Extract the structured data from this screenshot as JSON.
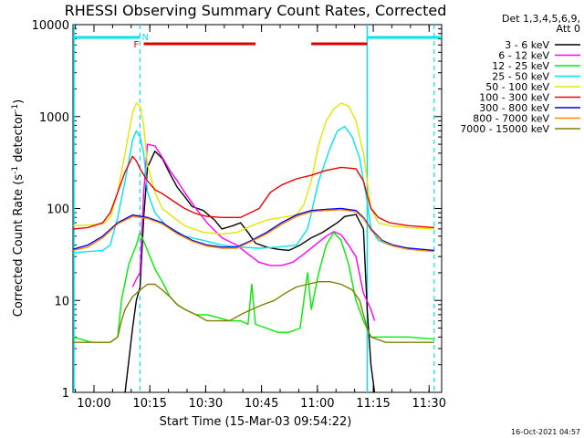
{
  "chart_data": {
    "type": "line",
    "title": "RHESSI Observing Summary Count Rates, Corrected",
    "ylabel_main": "Corrected Count Rate (s",
    "ylabel_sup1": "-1",
    "ylabel_mid": " detector",
    "ylabel_sup2": "-1",
    "ylabel_end": ")",
    "xlabel": "Start Time (15-Mar-03 09:54:22)",
    "timestamp": "16-Oct-2021 04:57",
    "y_scale": "log",
    "ylim": [
      1,
      10000
    ],
    "xlim_minutes_after_0954": [
      0,
      99
    ],
    "x_ticks": [
      {
        "label": "10:00",
        "t": 5.63
      },
      {
        "label": "10:15",
        "t": 20.63
      },
      {
        "label": "10:30",
        "t": 35.63
      },
      {
        "label": "10:45",
        "t": 50.63
      },
      {
        "label": "11:00",
        "t": 65.63
      },
      {
        "label": "11:15",
        "t": 80.63
      },
      {
        "label": "11:30",
        "t": 95.63
      }
    ],
    "y_ticks": [
      {
        "label": "1",
        "v": 1
      },
      {
        "label": "10",
        "v": 10
      },
      {
        "label": "100",
        "v": 100
      },
      {
        "label": "1000",
        "v": 1000
      },
      {
        "label": "10000",
        "v": 10000
      }
    ],
    "legend_header": [
      "Det 1,3,4,5,6,9,",
      "Att 0"
    ],
    "legend_placement": "right",
    "flags": [
      {
        "label": "F",
        "color": "#dd0000",
        "kind": "flare",
        "segments": [
          [
            19,
            49
          ],
          [
            64,
            79
          ]
        ]
      },
      {
        "label": "N",
        "color": "#00e5ee",
        "kind": "night",
        "segments": [
          [
            0,
            18
          ],
          [
            79,
            99
          ]
        ]
      }
    ],
    "night_dashed_lines_t": [
      18,
      97
    ],
    "night_solid_lines_t": [
      0,
      79
    ],
    "series": [
      {
        "name": "3 - 6 keV",
        "color": "#000000",
        "points": [
          [
            14,
            1.0
          ],
          [
            16,
            5
          ],
          [
            17,
            10
          ],
          [
            18,
            14
          ],
          [
            19,
            80
          ],
          [
            20,
            280
          ],
          [
            22,
            420
          ],
          [
            24,
            350
          ],
          [
            26,
            240
          ],
          [
            28,
            170
          ],
          [
            30,
            135
          ],
          [
            32,
            105
          ],
          [
            35,
            95
          ],
          [
            38,
            75
          ],
          [
            40,
            60
          ],
          [
            43,
            65
          ],
          [
            45,
            70
          ],
          [
            47,
            55
          ],
          [
            49,
            42
          ],
          [
            52,
            38
          ],
          [
            55,
            36
          ],
          [
            58,
            35
          ],
          [
            61,
            40
          ],
          [
            64,
            48
          ],
          [
            67,
            55
          ],
          [
            69,
            62
          ],
          [
            71,
            70
          ],
          [
            73,
            82
          ],
          [
            76,
            86
          ],
          [
            78,
            60
          ],
          [
            79,
            8
          ],
          [
            80,
            2
          ],
          [
            81,
            1.0
          ]
        ]
      },
      {
        "name": "6 - 12 keV",
        "color": "#ff00ff",
        "points": [
          [
            16,
            14
          ],
          [
            17,
            17
          ],
          [
            18,
            20
          ],
          [
            19,
            150
          ],
          [
            20,
            500
          ],
          [
            22,
            480
          ],
          [
            24,
            360
          ],
          [
            26,
            260
          ],
          [
            28,
            200
          ],
          [
            30,
            150
          ],
          [
            33,
            100
          ],
          [
            36,
            70
          ],
          [
            40,
            48
          ],
          [
            44,
            40
          ],
          [
            47,
            32
          ],
          [
            50,
            26
          ],
          [
            53,
            24
          ],
          [
            56,
            24
          ],
          [
            59,
            26
          ],
          [
            62,
            32
          ],
          [
            65,
            40
          ],
          [
            68,
            50
          ],
          [
            70,
            56
          ],
          [
            72,
            52
          ],
          [
            74,
            40
          ],
          [
            76,
            30
          ],
          [
            78,
            12
          ],
          [
            80,
            8
          ],
          [
            81,
            6
          ]
        ]
      },
      {
        "name": "12 - 25 keV",
        "color": "#00ee00",
        "points": [
          [
            0,
            4
          ],
          [
            5,
            3.5
          ],
          [
            10,
            3.5
          ],
          [
            12,
            4
          ],
          [
            13,
            10
          ],
          [
            15,
            25
          ],
          [
            17,
            40
          ],
          [
            18,
            55
          ],
          [
            20,
            35
          ],
          [
            22,
            22
          ],
          [
            24,
            16
          ],
          [
            26,
            11
          ],
          [
            28,
            9
          ],
          [
            30,
            8
          ],
          [
            33,
            7
          ],
          [
            36,
            7
          ],
          [
            39,
            6.5
          ],
          [
            42,
            6
          ],
          [
            45,
            6
          ],
          [
            47,
            5.5
          ],
          [
            48,
            15
          ],
          [
            49,
            5.5
          ],
          [
            52,
            5
          ],
          [
            55,
            4.5
          ],
          [
            58,
            4.5
          ],
          [
            61,
            5
          ],
          [
            63,
            20
          ],
          [
            64,
            8
          ],
          [
            66,
            20
          ],
          [
            68,
            40
          ],
          [
            70,
            55
          ],
          [
            72,
            45
          ],
          [
            74,
            25
          ],
          [
            76,
            10
          ],
          [
            78,
            6
          ],
          [
            80,
            4
          ],
          [
            85,
            4
          ],
          [
            90,
            4
          ],
          [
            97,
            3.8
          ]
        ]
      },
      {
        "name": "25 - 50 keV",
        "color": "#00e5ee",
        "points": [
          [
            0,
            33
          ],
          [
            4,
            34
          ],
          [
            8,
            35
          ],
          [
            10,
            40
          ],
          [
            12,
            80
          ],
          [
            14,
            200
          ],
          [
            16,
            550
          ],
          [
            17,
            700
          ],
          [
            18,
            600
          ],
          [
            19,
            400
          ],
          [
            20,
            150
          ],
          [
            22,
            90
          ],
          [
            25,
            65
          ],
          [
            30,
            50
          ],
          [
            35,
            45
          ],
          [
            40,
            40
          ],
          [
            45,
            38
          ],
          [
            50,
            37
          ],
          [
            55,
            38
          ],
          [
            60,
            40
          ],
          [
            63,
            60
          ],
          [
            66,
            200
          ],
          [
            69,
            450
          ],
          [
            71,
            700
          ],
          [
            73,
            780
          ],
          [
            75,
            600
          ],
          [
            77,
            350
          ],
          [
            78,
            200
          ],
          [
            79,
            120
          ],
          [
            80,
            60
          ],
          [
            82,
            45
          ],
          [
            85,
            40
          ],
          [
            90,
            37
          ],
          [
            97,
            35
          ]
        ]
      },
      {
        "name": "50 - 100 keV",
        "color": "#e5e500",
        "points": [
          [
            0,
            65
          ],
          [
            4,
            66
          ],
          [
            8,
            68
          ],
          [
            10,
            80
          ],
          [
            12,
            150
          ],
          [
            14,
            400
          ],
          [
            16,
            1100
          ],
          [
            17,
            1400
          ],
          [
            18,
            1300
          ],
          [
            19,
            800
          ],
          [
            20,
            300
          ],
          [
            22,
            150
          ],
          [
            24,
            100
          ],
          [
            27,
            80
          ],
          [
            30,
            65
          ],
          [
            35,
            55
          ],
          [
            40,
            53
          ],
          [
            44,
            55
          ],
          [
            48,
            65
          ],
          [
            52,
            75
          ],
          [
            56,
            80
          ],
          [
            60,
            85
          ],
          [
            62,
            110
          ],
          [
            64,
            200
          ],
          [
            66,
            500
          ],
          [
            68,
            900
          ],
          [
            70,
            1200
          ],
          [
            72,
            1400
          ],
          [
            74,
            1300
          ],
          [
            76,
            900
          ],
          [
            78,
            400
          ],
          [
            79,
            200
          ],
          [
            80,
            100
          ],
          [
            82,
            70
          ],
          [
            85,
            65
          ],
          [
            90,
            62
          ],
          [
            97,
            60
          ]
        ]
      },
      {
        "name": "100 - 300 keV",
        "color": "#ee0000",
        "points": [
          [
            0,
            60
          ],
          [
            4,
            62
          ],
          [
            8,
            70
          ],
          [
            10,
            90
          ],
          [
            12,
            150
          ],
          [
            14,
            250
          ],
          [
            16,
            370
          ],
          [
            17,
            330
          ],
          [
            18,
            270
          ],
          [
            20,
            200
          ],
          [
            22,
            160
          ],
          [
            24,
            145
          ],
          [
            27,
            120
          ],
          [
            30,
            100
          ],
          [
            33,
            88
          ],
          [
            36,
            82
          ],
          [
            40,
            80
          ],
          [
            45,
            80
          ],
          [
            50,
            100
          ],
          [
            53,
            150
          ],
          [
            56,
            180
          ],
          [
            60,
            210
          ],
          [
            64,
            230
          ],
          [
            68,
            260
          ],
          [
            72,
            280
          ],
          [
            76,
            270
          ],
          [
            78,
            200
          ],
          [
            79,
            140
          ],
          [
            80,
            100
          ],
          [
            82,
            80
          ],
          [
            85,
            70
          ],
          [
            90,
            65
          ],
          [
            97,
            62
          ]
        ]
      },
      {
        "name": "300 - 800 keV",
        "color": "#0000ee",
        "points": [
          [
            0,
            36
          ],
          [
            4,
            40
          ],
          [
            8,
            50
          ],
          [
            12,
            70
          ],
          [
            16,
            85
          ],
          [
            20,
            80
          ],
          [
            24,
            70
          ],
          [
            28,
            55
          ],
          [
            32,
            45
          ],
          [
            36,
            40
          ],
          [
            40,
            38
          ],
          [
            44,
            38
          ],
          [
            48,
            45
          ],
          [
            52,
            55
          ],
          [
            56,
            70
          ],
          [
            60,
            85
          ],
          [
            64,
            95
          ],
          [
            68,
            98
          ],
          [
            72,
            100
          ],
          [
            76,
            95
          ],
          [
            78,
            80
          ],
          [
            80,
            60
          ],
          [
            83,
            45
          ],
          [
            86,
            40
          ],
          [
            90,
            37
          ],
          [
            97,
            35
          ]
        ]
      },
      {
        "name": "800 - 7000 keV",
        "color": "#ff8800",
        "points": [
          [
            0,
            35
          ],
          [
            4,
            38
          ],
          [
            8,
            48
          ],
          [
            12,
            68
          ],
          [
            16,
            82
          ],
          [
            20,
            78
          ],
          [
            24,
            68
          ],
          [
            28,
            53
          ],
          [
            32,
            44
          ],
          [
            36,
            39
          ],
          [
            40,
            37
          ],
          [
            44,
            37
          ],
          [
            48,
            44
          ],
          [
            52,
            53
          ],
          [
            56,
            67
          ],
          [
            60,
            82
          ],
          [
            64,
            92
          ],
          [
            68,
            95
          ],
          [
            72,
            97
          ],
          [
            76,
            92
          ],
          [
            78,
            78
          ],
          [
            80,
            58
          ],
          [
            83,
            44
          ],
          [
            86,
            39
          ],
          [
            90,
            36
          ],
          [
            97,
            34
          ]
        ]
      },
      {
        "name": "7000 - 15000 keV",
        "color": "#808000",
        "points": [
          [
            0,
            3.5
          ],
          [
            5,
            3.5
          ],
          [
            10,
            3.5
          ],
          [
            12,
            4
          ],
          [
            13,
            6
          ],
          [
            14,
            8
          ],
          [
            16,
            11
          ],
          [
            18,
            13
          ],
          [
            20,
            15
          ],
          [
            22,
            15
          ],
          [
            24,
            13
          ],
          [
            26,
            11
          ],
          [
            28,
            9
          ],
          [
            30,
            8
          ],
          [
            33,
            7
          ],
          [
            36,
            6
          ],
          [
            39,
            6
          ],
          [
            42,
            6
          ],
          [
            45,
            7
          ],
          [
            48,
            8
          ],
          [
            51,
            9
          ],
          [
            54,
            10
          ],
          [
            57,
            12
          ],
          [
            60,
            14
          ],
          [
            63,
            15
          ],
          [
            66,
            16
          ],
          [
            69,
            16
          ],
          [
            72,
            15
          ],
          [
            75,
            13
          ],
          [
            77,
            10
          ],
          [
            78,
            7
          ],
          [
            79,
            5
          ],
          [
            80,
            4
          ],
          [
            84,
            3.5
          ],
          [
            90,
            3.5
          ],
          [
            97,
            3.5
          ]
        ]
      }
    ]
  }
}
